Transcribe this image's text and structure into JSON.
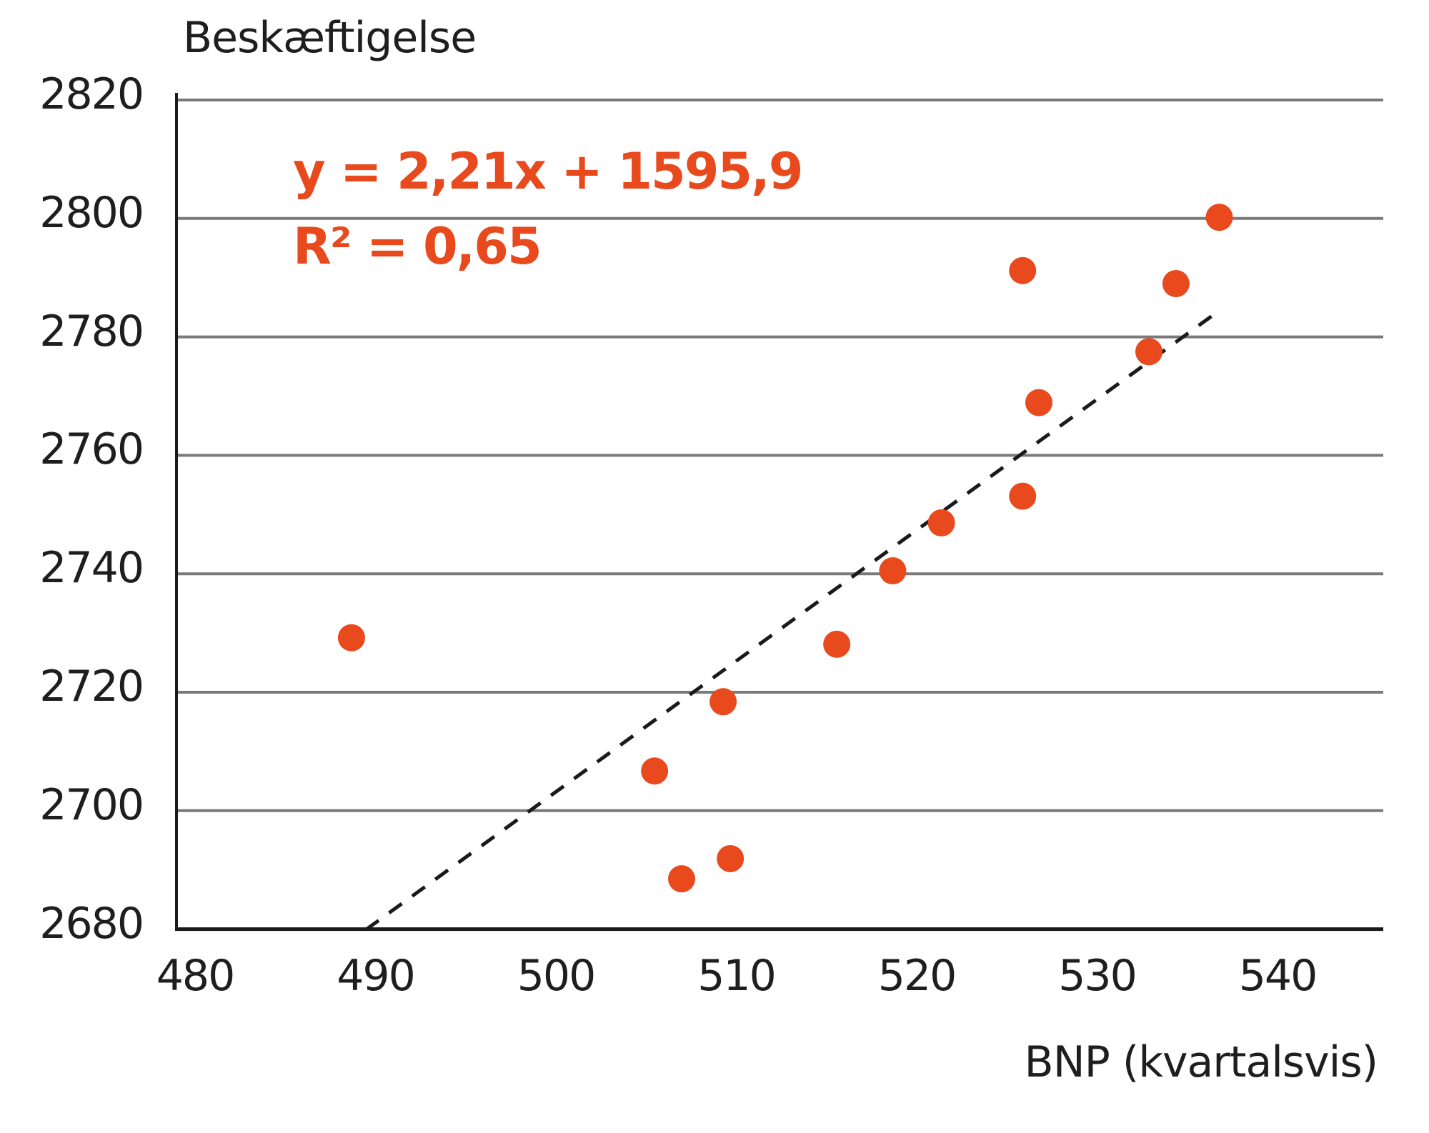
{
  "chart_data": {
    "type": "scatter",
    "title": "",
    "xlabel": "BNP (kvartalsvis)",
    "ylabel": "Beskæftigelse",
    "xlim": [
      480,
      545
    ],
    "ylim": [
      2680,
      2820
    ],
    "xticks": [
      480,
      490,
      500,
      510,
      520,
      530,
      540
    ],
    "yticks": [
      2680,
      2700,
      2720,
      2740,
      2760,
      2780,
      2800,
      2820
    ],
    "grid": {
      "horizontal": true,
      "vertical": false
    },
    "legend": null,
    "points": [
      {
        "x": 489.7,
        "y": 2729.2
      },
      {
        "x": 506.5,
        "y": 2706.7
      },
      {
        "x": 508.0,
        "y": 2688.5
      },
      {
        "x": 510.3,
        "y": 2718.4
      },
      {
        "x": 510.7,
        "y": 2691.9
      },
      {
        "x": 516.6,
        "y": 2728.1
      },
      {
        "x": 519.7,
        "y": 2740.5
      },
      {
        "x": 522.4,
        "y": 2748.6
      },
      {
        "x": 526.9,
        "y": 2753.1
      },
      {
        "x": 526.9,
        "y": 2791.2
      },
      {
        "x": 527.8,
        "y": 2768.9
      },
      {
        "x": 533.9,
        "y": 2777.5
      },
      {
        "x": 535.4,
        "y": 2789.0
      },
      {
        "x": 537.8,
        "y": 2800.2
      }
    ],
    "trendline": {
      "type": "linear",
      "slope": 2.21,
      "intercept": 1595.9,
      "r_squared": 0.65,
      "x_range": [
        490.5,
        537.8
      ],
      "style": "dashed"
    },
    "annotations": [
      {
        "text": "y = 2,21x + 1595,9"
      },
      {
        "text": "R² = 0,65"
      }
    ]
  },
  "labels": {
    "y_title": "Beskæftigelse",
    "x_title": "BNP (kvartalsvis)",
    "equation": "y = 2,21x + 1595,9",
    "r_squared": "R² = 0,65"
  },
  "colors": {
    "points": "#E8491D",
    "annotation": "#E8491D",
    "gridline": "#7a7a7a",
    "axis": "#1a1a1a",
    "trendline": "#1a1a1a"
  }
}
